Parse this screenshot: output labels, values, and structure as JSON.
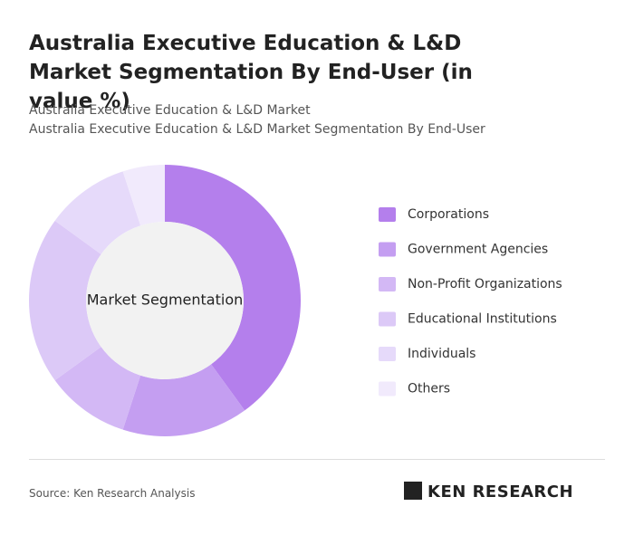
{
  "chart_data": {
    "type": "donut",
    "title": "Australia Executive Education & L&D Market Segmentation By End-User (in value %)",
    "subtitle": [
      "Australia Executive Education & L&D Market",
      "Australia Executive Education & L&D Market Segmentation By End-User"
    ],
    "center_label": "Market Segmentation",
    "categories": [
      "Corporations",
      "Government Agencies",
      "Non-Profit Organizations",
      "Educational Institutions",
      "Individuals",
      "Others"
    ],
    "values": [
      40,
      15,
      10,
      20,
      10,
      5
    ],
    "colors": [
      "#b47fec",
      "#c49ef1",
      "#d3b8f5",
      "#dcc9f7",
      "#e6dafa",
      "#f1eafc"
    ],
    "legend": "right"
  },
  "source": "Source: Ken Research Analysis",
  "logo": "KEN RESEARCH"
}
